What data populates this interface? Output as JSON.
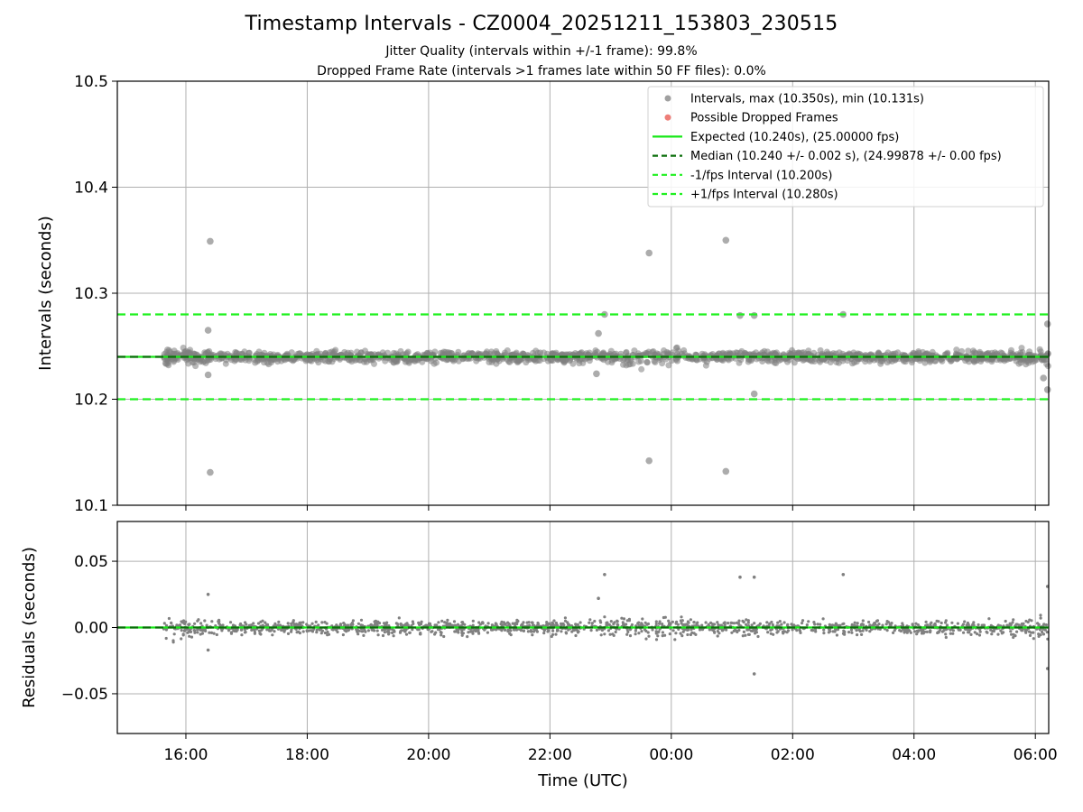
{
  "title": "Timestamp Intervals - CZ0004_20251211_153803_230515",
  "subtitle_1": "Jitter Quality (intervals within +/-1 frame): 99.8%",
  "subtitle_2": "Dropped Frame Rate (intervals >1 frames late within 50 FF files): 0.0%",
  "colors": {
    "points": "#808080",
    "dropped": "#e8534b",
    "expected": "#17e817",
    "median": "#0b6e0b",
    "bounds": "#1ff01f",
    "grid": "#b0b0b0"
  },
  "chart_data": [
    {
      "type": "scatter",
      "name": "intervals",
      "ylabel": "Intervals (seconds)",
      "xlabel": "",
      "ylim": [
        10.1,
        10.5
      ],
      "yticks": [
        "10.1",
        "10.2",
        "10.3",
        "10.4",
        "10.5"
      ],
      "xticks": [
        "16:00",
        "18:00",
        "20:00",
        "22:00",
        "00:00",
        "02:00",
        "04:00",
        "06:00"
      ],
      "x_range_hours": [
        14.87,
        30.22
      ],
      "data_x_range_hours": [
        15.63,
        30.22
      ],
      "grid": true,
      "legend_position": "upper right",
      "legend": [
        "Intervals, max (10.350s), min (10.131s)",
        "Possible Dropped Frames",
        "Expected (10.240s), (25.00000 fps)",
        "Median (10.240 +/- 0.002 s), (24.99878 +/- 0.00 fps)",
        "-1/fps Interval (10.200s)",
        "+1/fps Interval (10.280s)"
      ],
      "reference_lines": {
        "expected": 10.24,
        "median": 10.24,
        "minus_one_fps": 10.2,
        "plus_one_fps": 10.28
      },
      "outliers": [
        {
          "time": "16:24",
          "value": 10.349
        },
        {
          "time": "16:24",
          "value": 10.131
        },
        {
          "time": "16:22",
          "value": 10.265
        },
        {
          "time": "16:22",
          "value": 10.223
        },
        {
          "time": "22:54",
          "value": 10.28
        },
        {
          "time": "22:48",
          "value": 10.262
        },
        {
          "time": "22:46",
          "value": 10.224
        },
        {
          "time": "23:38",
          "value": 10.338
        },
        {
          "time": "23:38",
          "value": 10.142
        },
        {
          "time": "00:54",
          "value": 10.35
        },
        {
          "time": "00:54",
          "value": 10.132
        },
        {
          "time": "01:08",
          "value": 10.279
        },
        {
          "time": "01:22",
          "value": 10.279
        },
        {
          "time": "01:22",
          "value": 10.205
        },
        {
          "time": "02:50",
          "value": 10.28
        },
        {
          "time": "06:12",
          "value": 10.271
        },
        {
          "time": "06:12",
          "value": 10.209
        },
        {
          "time": "06:08",
          "value": 10.22
        }
      ],
      "bulk": {
        "time_start": "15:38",
        "time_end": "06:13",
        "center": 10.24,
        "spread": 0.004
      }
    },
    {
      "type": "scatter",
      "name": "residuals",
      "ylabel": "Residuals (seconds)",
      "xlabel": "Time (UTC)",
      "ylim": [
        -0.08,
        0.08
      ],
      "yticks": [
        "−0.05",
        "0.00",
        "0.05"
      ],
      "xticks": [
        "16:00",
        "18:00",
        "20:00",
        "22:00",
        "00:00",
        "02:00",
        "04:00",
        "06:00"
      ],
      "grid": true,
      "reference_lines": {
        "expected": 0.0,
        "median": 0.0
      },
      "outliers": [
        {
          "time": "16:22",
          "value": 0.025
        },
        {
          "time": "16:22",
          "value": -0.017
        },
        {
          "time": "22:54",
          "value": 0.04
        },
        {
          "time": "22:48",
          "value": 0.022
        },
        {
          "time": "01:08",
          "value": 0.038
        },
        {
          "time": "01:22",
          "value": 0.038
        },
        {
          "time": "01:22",
          "value": -0.035
        },
        {
          "time": "02:50",
          "value": 0.04
        },
        {
          "time": "06:12",
          "value": 0.031
        },
        {
          "time": "06:12",
          "value": -0.031
        }
      ],
      "bulk": {
        "time_start": "15:38",
        "time_end": "06:13",
        "center": 0.0,
        "spread": 0.004
      }
    }
  ]
}
